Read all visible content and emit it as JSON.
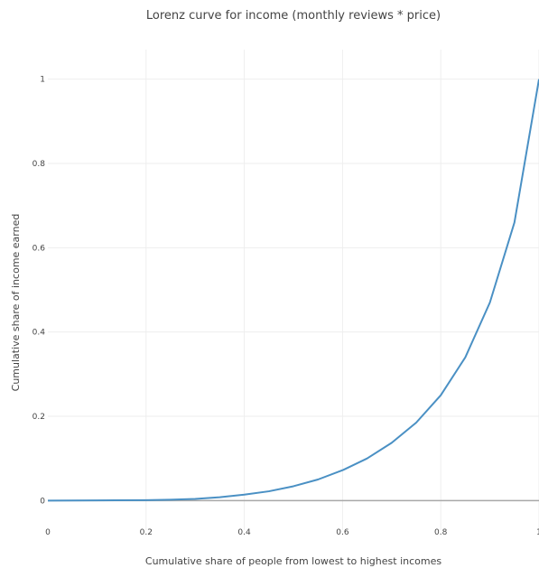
{
  "chart_data": {
    "type": "line",
    "title": "Lorenz curve for income (monthly reviews * price)",
    "xlabel": "Cumulative share of people from lowest to highest incomes",
    "ylabel": "Cumulative share of income earned",
    "xlim": [
      0,
      1
    ],
    "ylim": [
      -0.07,
      1.07
    ],
    "xticks": [
      "0",
      "0.2",
      "0.4",
      "0.6",
      "0.8",
      "1"
    ],
    "yticks": [
      "0",
      "0.2",
      "0.4",
      "0.6",
      "0.8",
      "1"
    ],
    "grid": true,
    "series": [
      {
        "color": "#4a90c4",
        "x": [
          0,
          0.1,
          0.2,
          0.25,
          0.3,
          0.35,
          0.4,
          0.45,
          0.5,
          0.55,
          0.6,
          0.65,
          0.7,
          0.75,
          0.8,
          0.85,
          0.9,
          0.95,
          1.0
        ],
        "y": [
          0,
          0.0005,
          0.001,
          0.002,
          0.004,
          0.008,
          0.014,
          0.022,
          0.034,
          0.05,
          0.072,
          0.1,
          0.137,
          0.185,
          0.25,
          0.34,
          0.47,
          0.66,
          1.0
        ]
      }
    ]
  }
}
